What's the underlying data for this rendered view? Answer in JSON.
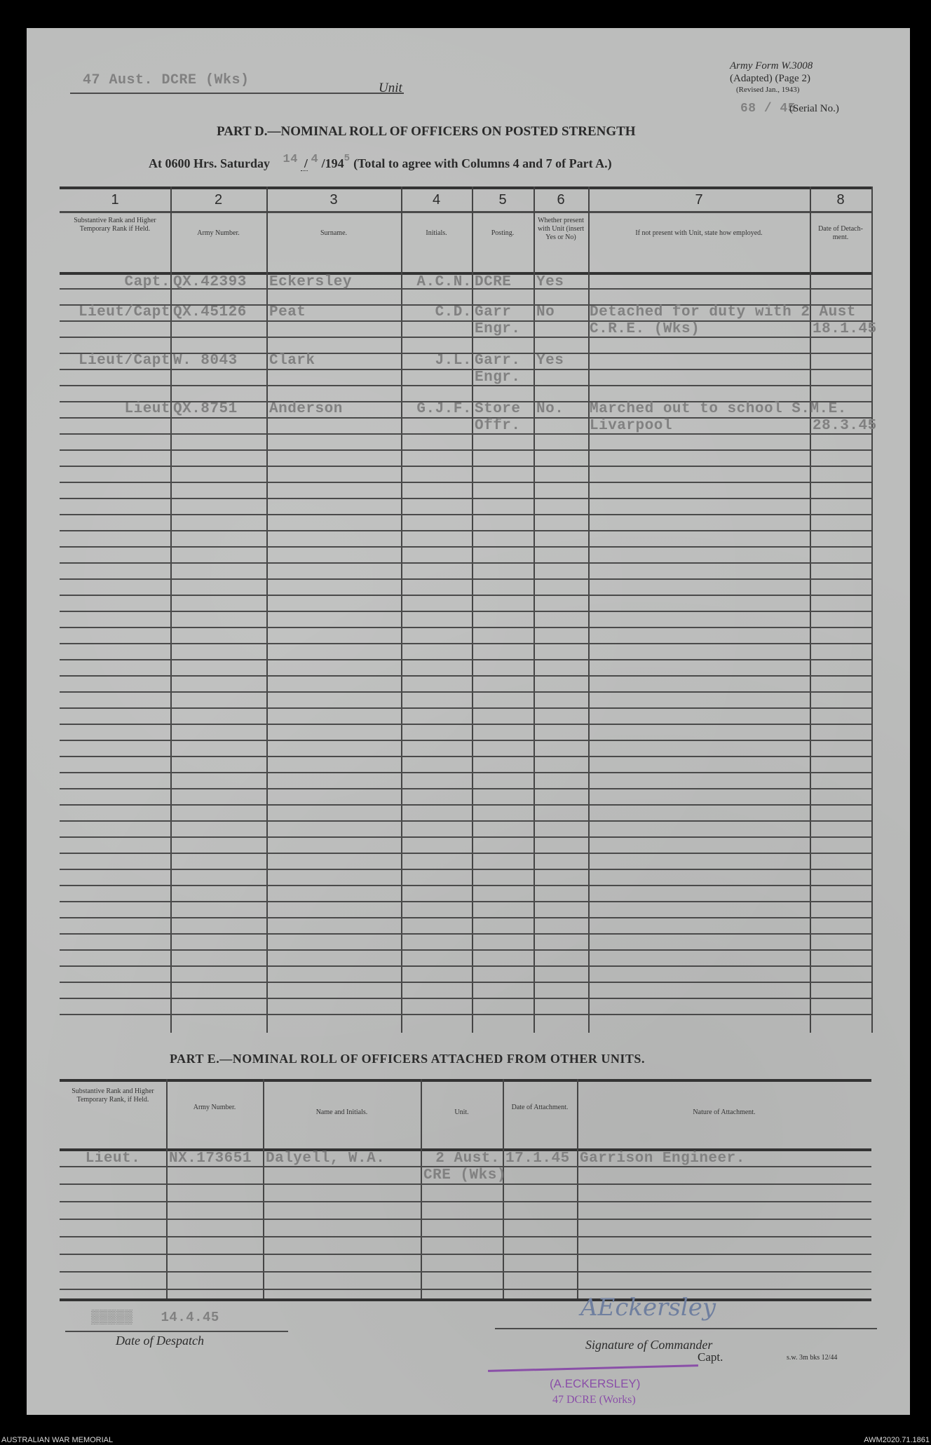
{
  "header": {
    "unit_value": "47 Aust. DCRE (Wks)",
    "unit_label": "Unit",
    "form_line1": "Army Form W.3008",
    "form_line2": "(Adapted) (Page 2)",
    "form_line3": "(Revised Jan., 1943)",
    "serial_value": "68 / 45",
    "serial_label": "(Serial No.)"
  },
  "part_d": {
    "title": "PART D.—NOMINAL ROLL OF OFFICERS ON POSTED STRENGTH",
    "at_prefix": "At 0600 Hrs. Saturday",
    "day": "14",
    "month": "4",
    "year_prefix": "/194",
    "year_digit": "5",
    "at_suffix": "(Total to agree with Columns 4 and 7 of Part A.)",
    "column_numbers": [
      "1",
      "2",
      "3",
      "4",
      "5",
      "6",
      "7",
      "8"
    ],
    "column_headers": [
      "Substantive Rank and Higher Temporary Rank if Held.",
      "Army Number.",
      "Surname.",
      "Initials.",
      "Posting.",
      "Whether present with Unit (insert Yes or No)",
      "If not present with Unit, state how employed.",
      "Date of Detach-ment."
    ],
    "entries": [
      {
        "rank": "Capt.",
        "number": "QX.42393",
        "surname": "Eckersley",
        "initials": "A.C.N.",
        "posting": [
          "DCRE"
        ],
        "present": "Yes",
        "employed": [],
        "date": ""
      },
      {
        "rank": "Lieut/Capt",
        "number": "QX.45126",
        "surname": "Peat",
        "initials": "C.D.",
        "posting": [
          "Garr",
          "Engr."
        ],
        "present": "No",
        "employed": [
          "Detached for duty with 2 Aust",
          "C.R.E. (Wks)"
        ],
        "date": "18.1.45"
      },
      {
        "rank": "Lieut/Capt",
        "number": "W. 8043",
        "surname": "Clark",
        "initials": "J.L.",
        "posting": [
          "Garr.",
          "Engr."
        ],
        "present": "Yes",
        "employed": [],
        "date": ""
      },
      {
        "rank": "Lieut",
        "number": "QX.8751",
        "surname": "Anderson",
        "initials": "G.J.F.",
        "posting": [
          "Store",
          "Offr."
        ],
        "present": "No.",
        "employed": [
          "Marched out to school S.M.E.",
          "Livarpool"
        ],
        "date": "28.3.45"
      }
    ]
  },
  "part_e": {
    "title": "PART E.—NOMINAL ROLL OF OFFICERS ATTACHED FROM OTHER UNITS.",
    "column_headers": [
      "Substantive Rank and Higher Temporary Rank, if Held.",
      "Army Number.",
      "Name and Initials.",
      "Unit.",
      "Date of Attachment.",
      "Nature of Attachment."
    ],
    "entries": [
      {
        "rank": "Lieut.",
        "number": "NX.173651",
        "name": "Dalyell, W.A.",
        "unit": [
          "2 Aust.",
          "CRE (Wks)"
        ],
        "date": "17.1.45",
        "nature": "Garrison Engineer."
      }
    ]
  },
  "footer": {
    "despatch_value": "14.4.45",
    "despatch_label": "Date of Despatch",
    "signature": "AEckersley",
    "signature_label": "Signature of Commander",
    "rank": "Capt.",
    "print_code": "s.w. 3m bks 12/44",
    "stamp_line1": "(A.ECKERSLEY)",
    "stamp_line2": "47 DCRE (Works)"
  },
  "captions": {
    "left": "AUSTRALIAN WAR MEMORIAL",
    "right": "AWM2020.71.1861"
  }
}
